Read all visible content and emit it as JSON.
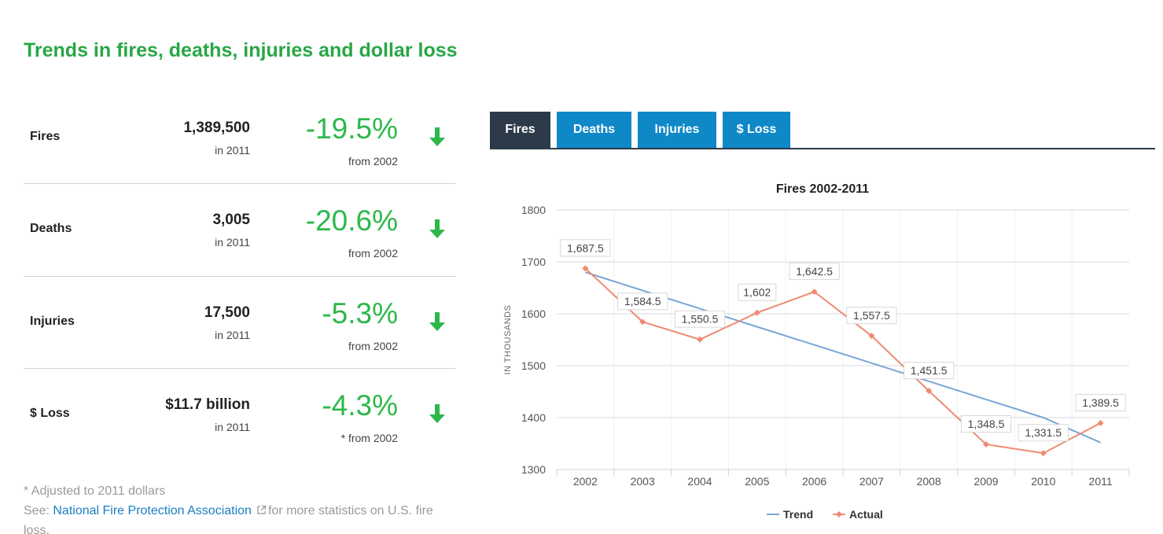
{
  "page": {
    "title": "Trends in fires, deaths, injuries and dollar loss"
  },
  "stats": [
    {
      "label": "Fires",
      "value": "1,389,500",
      "year": "in 2011",
      "change": "-19.5%",
      "from": "from 2002",
      "arrow_icon": "arrow-down-icon"
    },
    {
      "label": "Deaths",
      "value": "3,005",
      "year": "in 2011",
      "change": "-20.6%",
      "from": "from 2002",
      "arrow_icon": "arrow-down-icon"
    },
    {
      "label": "Injuries",
      "value": "17,500",
      "year": "in 2011",
      "change": "-5.3%",
      "from": "from 2002",
      "arrow_icon": "arrow-down-icon"
    },
    {
      "label": "$ Loss",
      "value": "$11.7 billion",
      "year": "in 2011",
      "change": "-4.3%",
      "from": "* from 2002",
      "arrow_icon": "arrow-down-icon"
    }
  ],
  "footnote": {
    "adjusted": "* Adjusted to 2011 dollars",
    "see": "See:",
    "link_text": "National Fire Protection Association",
    "link_icon": "external-link-icon",
    "rest": "for more statistics on U.S. fire loss."
  },
  "tabs": [
    {
      "label": "Fires",
      "active": true
    },
    {
      "label": "Deaths",
      "active": false
    },
    {
      "label": "Injuries",
      "active": false
    },
    {
      "label": "$ Loss",
      "active": false
    }
  ],
  "colors": {
    "title_green": "#28a745",
    "pct_green": "#2db84a",
    "tab_blue": "#0f88c8",
    "tab_active": "#2d3a4a",
    "trend": "#7aa6d6",
    "actual": "#ef8a72",
    "link": "#1a7fc1"
  },
  "chart_data": {
    "type": "line",
    "title": "Fires 2002-2011",
    "xlabel": "",
    "ylabel": "IN THOUSANDS",
    "categories": [
      "2002",
      "2003",
      "2004",
      "2005",
      "2006",
      "2007",
      "2008",
      "2009",
      "2010",
      "2011"
    ],
    "ylim": [
      1300,
      1800
    ],
    "yticks": [
      1300,
      1400,
      1500,
      1600,
      1700,
      1800
    ],
    "grid": true,
    "legend_position": "bottom-center",
    "series": [
      {
        "name": "Trend",
        "values": [
          1680,
          1645,
          1610,
          1575,
          1540,
          1505,
          1470,
          1435,
          1400,
          1352
        ],
        "data_labels": false
      },
      {
        "name": "Actual",
        "values": [
          1687.5,
          1584.5,
          1550.5,
          1602,
          1642.5,
          1557.5,
          1451.5,
          1348.5,
          1331.5,
          1389.5
        ],
        "data_labels": [
          "1,687.5",
          "1,584.5",
          "1,550.5",
          "1,602",
          "1,642.5",
          "1,557.5",
          "1,451.5",
          "1,348.5",
          "1,331.5",
          "1,389.5"
        ]
      }
    ]
  }
}
